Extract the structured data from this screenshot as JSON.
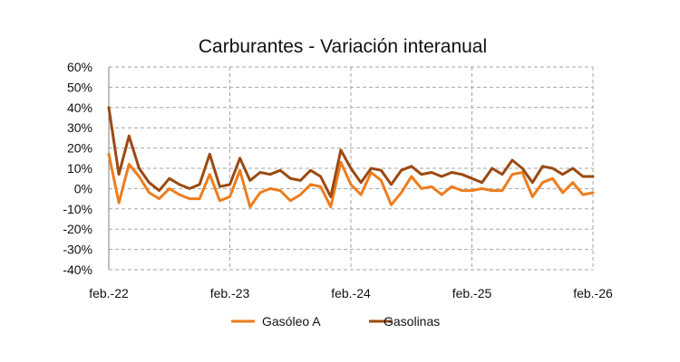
{
  "chart_data": {
    "type": "line",
    "title": "Carburantes - Variación interanual",
    "xlabel": "",
    "ylabel": "",
    "ylim": [
      -40,
      60
    ],
    "y_ticks": [
      "60%",
      "50%",
      "40%",
      "30%",
      "20%",
      "10%",
      "0%",
      "-10%",
      "-20%",
      "-30%",
      "-40%"
    ],
    "x_tick_labels": [
      "feb.-22",
      "feb.-23",
      "feb.-24",
      "feb.-25",
      "feb.-26"
    ],
    "grid": true,
    "legend_position": "bottom",
    "series": [
      {
        "name": "Gasóleo A",
        "color": "#ED7D1F",
        "values": [
          17,
          -7,
          12,
          6,
          -2,
          -5,
          0,
          -3,
          -5,
          -5,
          7,
          -6,
          -4,
          9,
          -9,
          -2,
          0,
          -1,
          -6,
          -3,
          2,
          1,
          -9,
          13,
          2,
          -3,
          8,
          4,
          -8,
          -2,
          6,
          0,
          1,
          -3,
          1,
          -1,
          -1,
          0,
          -1,
          -1,
          7,
          8,
          -4,
          3,
          5,
          -2,
          3,
          -3,
          -2
        ]
      },
      {
        "name": "Gasolinas",
        "color": "#9A4A12",
        "values": [
          40,
          7,
          26,
          10,
          3,
          -1,
          5,
          2,
          0,
          2,
          17,
          1,
          2,
          15,
          4,
          8,
          7,
          9,
          5,
          4,
          9,
          6,
          -4,
          19,
          10,
          3,
          10,
          9,
          2,
          9,
          11,
          7,
          8,
          6,
          8,
          7,
          5,
          3,
          10,
          7,
          14,
          10,
          3,
          11,
          10,
          7,
          10,
          6,
          6
        ]
      }
    ]
  }
}
